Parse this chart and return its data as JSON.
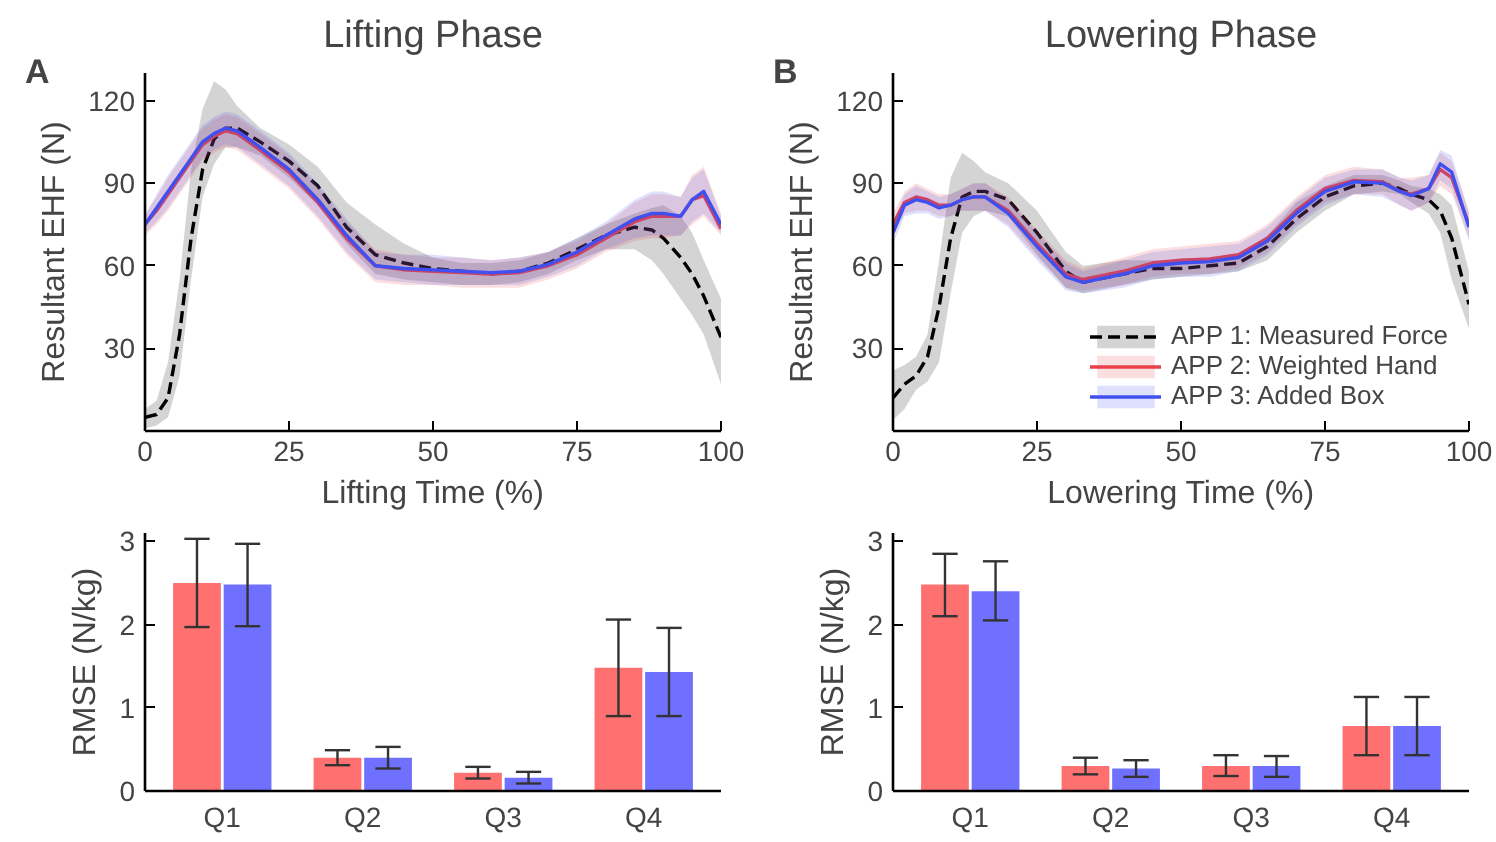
{
  "chart_data": [
    {
      "type": "line",
      "title": "Lifting Phase",
      "annotations": [
        "A"
      ],
      "xlabel": "Lifting Time (%)",
      "ylabel": "Resultant EHF (N)",
      "xlim": [
        0,
        100
      ],
      "xticks": [
        0,
        25,
        50,
        75,
        100
      ],
      "ylim": [
        0,
        130
      ],
      "yticks": [
        30,
        60,
        90,
        120
      ],
      "x": [
        0,
        2,
        4,
        6,
        8,
        10,
        12,
        14,
        16,
        20,
        25,
        30,
        35,
        40,
        45,
        50,
        55,
        60,
        65,
        70,
        75,
        80,
        85,
        88,
        90,
        93,
        95,
        97,
        100
      ],
      "series": [
        {
          "color": "#000000",
          "line_style": "dashed",
          "values": [
            5,
            6,
            12,
            35,
            70,
            95,
            106,
            110,
            110,
            105,
            98,
            89,
            74,
            64,
            61,
            59,
            58,
            57,
            58,
            61,
            66,
            71,
            74,
            73,
            70,
            63,
            57,
            49,
            34
          ],
          "lower": [
            1,
            2,
            5,
            20,
            55,
            85,
            97,
            103,
            103,
            100,
            92,
            82,
            68,
            57,
            55,
            54,
            53,
            53,
            54,
            57,
            62,
            66,
            66,
            62,
            57,
            48,
            42,
            35,
            17
          ],
          "upper": [
            8,
            11,
            25,
            55,
            95,
            117,
            127,
            124,
            118,
            110,
            104,
            96,
            83,
            75,
            68,
            63,
            61,
            61,
            62,
            65,
            70,
            75,
            79,
            81,
            82,
            78,
            72,
            62,
            48
          ]
        },
        {
          "color": "#e8414a",
          "line_style": "solid",
          "values": [
            75,
            80,
            86,
            92,
            98,
            104,
            107,
            109,
            108,
            102,
            94,
            83,
            70,
            60,
            58.5,
            58,
            57.5,
            57,
            57.5,
            60,
            64,
            70,
            76,
            78,
            78,
            78,
            84,
            85.5,
            73.5
          ],
          "lower": [
            71,
            75,
            80,
            86,
            92,
            98,
            101,
            103,
            102,
            96,
            88,
            77,
            64,
            54,
            53,
            53,
            52,
            52,
            52,
            55,
            59,
            65,
            69,
            70,
            70,
            71,
            75,
            78,
            71
          ],
          "upper": [
            79,
            85,
            92,
            98,
            104,
            110,
            113,
            115,
            114,
            108,
            100,
            89,
            76,
            66,
            64,
            63,
            63,
            62,
            63,
            65,
            69,
            75,
            83,
            86,
            86,
            85,
            93,
            96,
            79
          ]
        },
        {
          "color": "#4050f0",
          "line_style": "solid",
          "values": [
            75,
            81,
            87,
            93,
            99,
            105,
            108,
            110,
            109,
            103,
            95,
            84,
            71,
            60,
            59,
            58.5,
            58,
            57.5,
            58,
            60.5,
            65,
            71,
            77,
            79,
            79,
            78,
            84,
            87,
            75
          ],
          "lower": [
            72,
            76,
            81,
            87,
            93,
            99,
            102,
            104,
            103,
            97,
            89,
            78,
            65,
            55,
            54,
            53,
            53,
            53,
            53,
            56,
            60,
            66,
            70,
            71,
            71,
            71,
            76,
            79,
            72
          ],
          "upper": [
            78,
            86,
            93,
            99,
            105,
            111,
            114,
            116,
            115,
            109,
            101,
            90,
            77,
            65,
            64,
            64,
            63,
            62,
            63,
            65,
            70,
            76,
            84,
            87,
            87,
            85,
            92,
            95,
            78
          ]
        }
      ]
    },
    {
      "type": "line",
      "title": "Lowering Phase",
      "annotations": [
        "B"
      ],
      "xlabel": "Lowering Time (%)",
      "ylabel": "Resultant EHF (N)",
      "xlim": [
        0,
        100
      ],
      "xticks": [
        0,
        25,
        50,
        75,
        100
      ],
      "ylim": [
        0,
        130
      ],
      "yticks": [
        30,
        60,
        90,
        120
      ],
      "legend": "bottom right",
      "x": [
        0,
        2,
        4,
        6,
        8,
        10,
        12,
        14,
        16,
        20,
        25,
        30,
        33,
        40,
        45,
        50,
        55,
        60,
        65,
        70,
        75,
        80,
        85,
        88,
        90,
        93,
        95,
        97,
        100
      ],
      "series": [
        {
          "name": "APP 1: Measured Force",
          "color": "#000000",
          "line_style": "dashed",
          "values": [
            12,
            17,
            20,
            27,
            45,
            70,
            85,
            87,
            87,
            84,
            72,
            58,
            54,
            57,
            59,
            59,
            60,
            61,
            67,
            77,
            85,
            89,
            90,
            88,
            86,
            84,
            80,
            70,
            46
          ],
          "lower": [
            4,
            8,
            15,
            18,
            25,
            50,
            72,
            78,
            80,
            78,
            64,
            52,
            50,
            53,
            55,
            56,
            57,
            58,
            62,
            72,
            80,
            86,
            87,
            86,
            83,
            79,
            72,
            55,
            37
          ],
          "upper": [
            22,
            24,
            27,
            35,
            62,
            92,
            101,
            98,
            94,
            90,
            80,
            65,
            60,
            62,
            62,
            62,
            62,
            64,
            71,
            83,
            89,
            93,
            93,
            91,
            89,
            88,
            86,
            82,
            58
          ]
        },
        {
          "name": "APP 2: Weighted Hand",
          "color": "#e8414a",
          "line_style": "solid",
          "values": [
            75,
            83,
            85,
            84,
            82,
            82,
            84,
            85,
            85,
            80,
            68,
            57,
            55,
            58,
            61,
            62,
            62.5,
            64,
            70,
            80,
            88,
            91,
            90.5,
            87,
            86,
            88,
            95,
            92,
            75
          ],
          "lower": [
            71,
            79,
            80,
            80,
            78,
            78,
            80,
            80,
            80,
            75,
            63,
            52,
            51,
            53,
            56,
            57,
            57,
            59,
            65,
            75,
            83,
            86,
            86,
            82,
            80,
            83,
            89,
            86,
            70
          ],
          "upper": [
            79,
            87,
            90,
            88,
            86,
            86,
            88,
            90,
            90,
            85,
            73,
            62,
            59,
            63,
            66,
            67,
            68,
            69,
            75,
            85,
            93,
            96,
            95,
            92,
            92,
            93,
            101,
            98,
            80
          ]
        },
        {
          "name": "APP 3: Added Box",
          "color": "#4050f0",
          "line_style": "solid",
          "values": [
            72,
            82,
            84,
            83,
            81,
            82,
            84,
            85,
            85,
            79,
            67,
            56,
            54,
            57,
            60,
            61,
            61.5,
            63,
            69,
            79,
            87,
            90.5,
            90,
            87,
            85.5,
            88,
            97,
            94,
            74
          ],
          "lower": [
            68,
            78,
            79,
            79,
            77,
            78,
            80,
            80,
            80,
            74,
            62,
            51,
            50,
            52,
            55,
            56,
            56,
            58,
            64,
            74,
            82,
            86,
            85,
            82,
            80,
            83,
            91,
            88,
            69
          ],
          "upper": [
            76,
            86,
            89,
            87,
            85,
            86,
            88,
            90,
            90,
            84,
            72,
            61,
            58,
            62,
            65,
            66,
            67,
            68,
            74,
            84,
            92,
            95,
            95,
            92,
            91,
            93,
            102,
            100,
            79
          ]
        }
      ]
    },
    {
      "type": "bar",
      "ylabel": "RMSE (N/kg)",
      "categories": [
        "Q1",
        "Q2",
        "Q3",
        "Q4"
      ],
      "ylim": [
        0,
        3.1
      ],
      "yticks": [
        0,
        1,
        2,
        3
      ],
      "series": [
        {
          "color": "#ff7070",
          "values": [
            2.5,
            0.4,
            0.22,
            1.48
          ],
          "errors": [
            [
              1.97,
              3.03
            ],
            [
              0.31,
              0.49
            ],
            [
              0.15,
              0.29
            ],
            [
              0.9,
              2.06
            ]
          ]
        },
        {
          "color": "#7070ff",
          "values": [
            2.48,
            0.4,
            0.16,
            1.43
          ],
          "errors": [
            [
              1.98,
              2.97
            ],
            [
              0.27,
              0.53
            ],
            [
              0.09,
              0.23
            ],
            [
              0.9,
              1.96
            ]
          ]
        }
      ]
    },
    {
      "type": "bar",
      "ylabel": "RMSE (N/kg)",
      "categories": [
        "Q1",
        "Q2",
        "Q3",
        "Q4"
      ],
      "ylim": [
        0,
        3.1
      ],
      "yticks": [
        0,
        1,
        2,
        3
      ],
      "series": [
        {
          "color": "#ff7070",
          "values": [
            2.48,
            0.3,
            0.3,
            0.78
          ],
          "errors": [
            [
              2.1,
              2.85
            ],
            [
              0.2,
              0.4
            ],
            [
              0.18,
              0.43
            ],
            [
              0.43,
              1.13
            ]
          ]
        },
        {
          "color": "#7070ff",
          "values": [
            2.4,
            0.27,
            0.3,
            0.78
          ],
          "errors": [
            [
              2.05,
              2.76
            ],
            [
              0.17,
              0.37
            ],
            [
              0.17,
              0.42
            ],
            [
              0.43,
              1.13
            ]
          ]
        }
      ]
    }
  ]
}
